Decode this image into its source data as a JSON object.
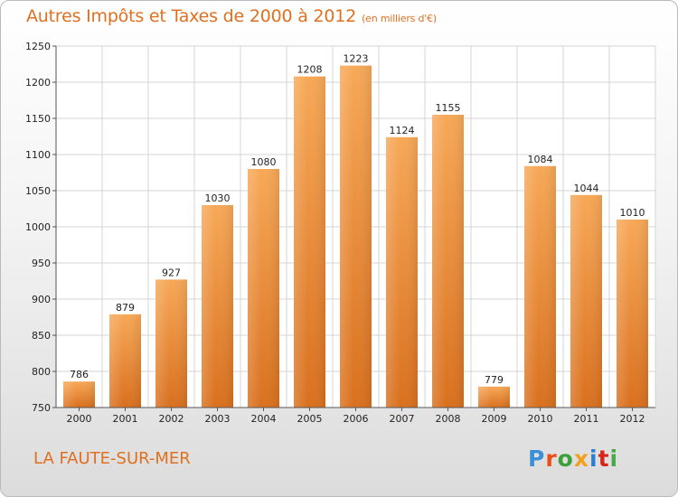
{
  "header": {
    "title": "Autres Impôts et Taxes de 2000 à 2012",
    "subtitle": "(en milliers d'€)"
  },
  "footer": {
    "city": "LA FAUTE-SUR-MER",
    "logo_letters": [
      "P",
      "r",
      "o",
      "x",
      "i",
      "t",
      "i"
    ]
  },
  "colors": {
    "bar_top": "#f7a857",
    "bar_bottom": "#d9701e",
    "title": "#e0701f",
    "grid": "#d4d4d4"
  },
  "chart_data": {
    "type": "bar",
    "categories": [
      "2000",
      "2001",
      "2002",
      "2003",
      "2004",
      "2005",
      "2006",
      "2007",
      "2008",
      "2009",
      "2010",
      "2011",
      "2012"
    ],
    "values": [
      786,
      879,
      927,
      1030,
      1080,
      1208,
      1223,
      1124,
      1155,
      779,
      1084,
      1044,
      1010
    ],
    "ylim": [
      750,
      1250
    ],
    "yticks": [
      750,
      800,
      850,
      900,
      950,
      1000,
      1050,
      1100,
      1150,
      1200,
      1250
    ],
    "grid": true,
    "data_labels": true
  }
}
